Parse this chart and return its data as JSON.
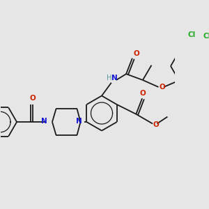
{
  "bg_color": "#e6e6e6",
  "bond_color": "#1a1a1a",
  "nitrogen_color": "#1414d4",
  "oxygen_color": "#cc2200",
  "chlorine_color": "#22aa22",
  "hydrogen_color": "#5a9a9a",
  "lw": 1.3,
  "xlim": [
    0,
    10
  ],
  "ylim": [
    0,
    10
  ]
}
